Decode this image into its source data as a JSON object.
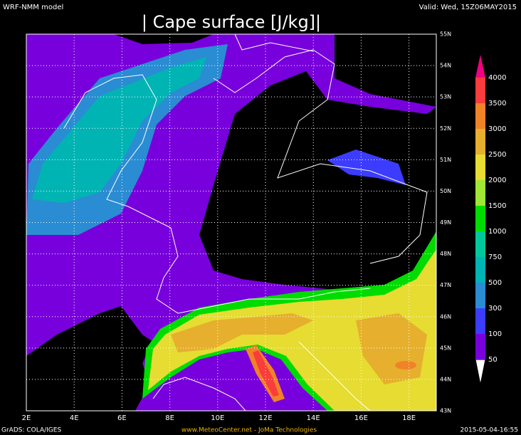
{
  "header": {
    "model": "WRF-NMM model",
    "title": "| Cape surface [J/kg]|",
    "valid": "Valid: Wed, 15Z06MAY2015"
  },
  "map": {
    "lon_labels": [
      "2E",
      "4E",
      "6E",
      "8E",
      "10E",
      "12E",
      "14E",
      "16E",
      "18E"
    ],
    "lat_labels": [
      "43N",
      "44N",
      "45N",
      "46N",
      "47N",
      "48N",
      "49N",
      "50N",
      "51N",
      "52N",
      "53N",
      "54N",
      "55N"
    ]
  },
  "colorbar": {
    "levels": [
      50,
      100,
      300,
      500,
      750,
      1000,
      1500,
      2000,
      2500,
      3000,
      3500,
      4000
    ],
    "under_color": "#ffffff",
    "band_colors": [
      "#7800dc",
      "#3c3cff",
      "#2a8cd2",
      "#00b4b4",
      "#00c89a",
      "#00dc00",
      "#a0e632",
      "#e6dc32",
      "#e6af2d",
      "#f08228",
      "#fa3c3c"
    ],
    "over_color": "#f00082"
  },
  "footer": {
    "software": "GrADS: COLA/IGES",
    "credit": "www.MeteoCenter.net  -  JoMa Technologies",
    "timestamp": "2015-05-04-16:55"
  }
}
